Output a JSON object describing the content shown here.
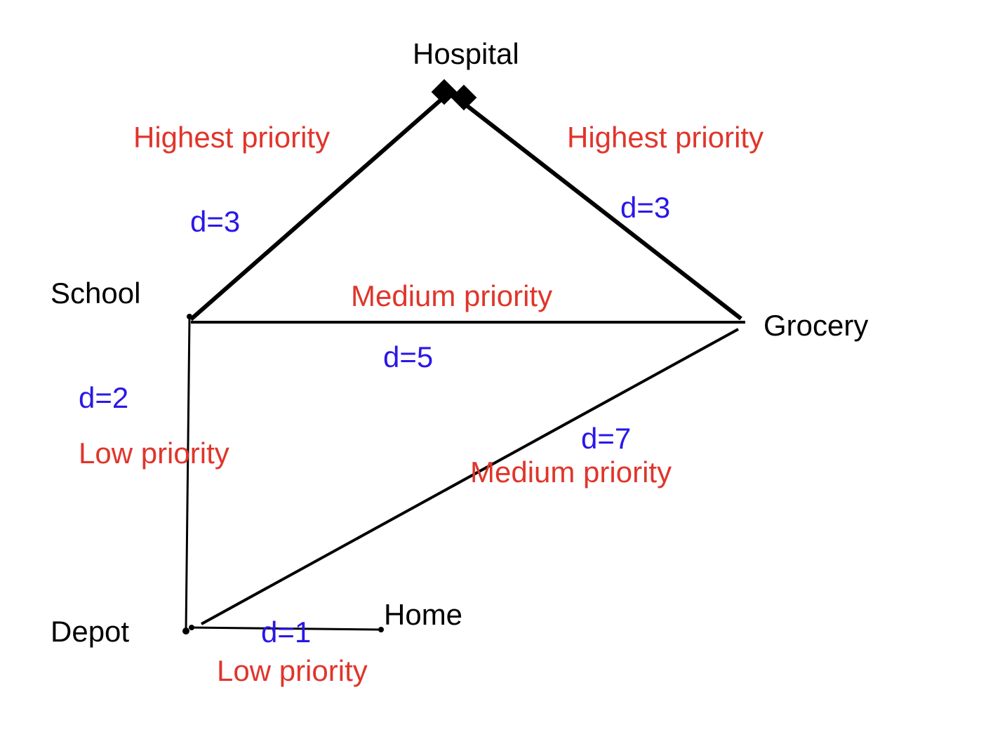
{
  "colors": {
    "line": "#000000",
    "node_text": "#000000",
    "distance_text": "#2a17e8",
    "priority_text": "#e0352b"
  },
  "nodes": [
    {
      "id": "hospital",
      "label": "Hospital"
    },
    {
      "id": "school",
      "label": "School"
    },
    {
      "id": "grocery",
      "label": "Grocery"
    },
    {
      "id": "depot",
      "label": "Depot"
    },
    {
      "id": "home",
      "label": "Home"
    }
  ],
  "edges": [
    {
      "id": "school-hospital",
      "from": "School",
      "to": "Hospital",
      "distance": "d=3",
      "priority": "Highest priority"
    },
    {
      "id": "hospital-grocery",
      "from": "Hospital",
      "to": "Grocery",
      "distance": "d=3",
      "priority": "Highest priority"
    },
    {
      "id": "school-grocery",
      "from": "School",
      "to": "Grocery",
      "distance": "d=5",
      "priority": "Medium priority"
    },
    {
      "id": "school-depot",
      "from": "School",
      "to": "Depot",
      "distance": "d=2",
      "priority": "Low priority"
    },
    {
      "id": "depot-grocery",
      "from": "Depot",
      "to": "Grocery",
      "distance": "d=7",
      "priority": "Medium priority"
    },
    {
      "id": "depot-home",
      "from": "Depot",
      "to": "Home",
      "distance": "d=1",
      "priority": "Low priority"
    }
  ]
}
